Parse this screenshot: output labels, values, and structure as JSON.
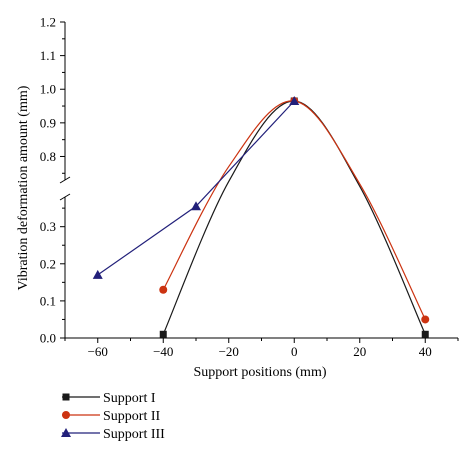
{
  "chart_data": {
    "type": "line",
    "title": "",
    "xlabel": "Support positions (mm)",
    "ylabel": "Vibration deformation amount (mm)",
    "xlim": [
      -70,
      50
    ],
    "x_ticks": [
      "−60",
      "−40",
      "−20",
      "0",
      "20",
      "40"
    ],
    "x_tick_values": [
      -60,
      -40,
      -20,
      0,
      20,
      40
    ],
    "y_broken_axis": true,
    "y_lower_range": [
      0.0,
      0.38
    ],
    "y_upper_range": [
      0.73,
      1.2
    ],
    "y_ticks_lower": [
      "0.0",
      "0.1",
      "0.2",
      "0.3"
    ],
    "y_tick_values_lower": [
      0.0,
      0.1,
      0.2,
      0.3
    ],
    "y_ticks_upper": [
      "0.8",
      "0.9",
      "1.0",
      "1.1",
      "1.2"
    ],
    "y_tick_values_upper": [
      0.8,
      0.9,
      1.0,
      1.1,
      1.2
    ],
    "grid": false,
    "smooth": true,
    "legend_position": "bottom-left",
    "series": [
      {
        "name": "Support I",
        "marker": "square",
        "color": "#1a1a1a",
        "x": [
          -40,
          0,
          40
        ],
        "y": [
          0.01,
          0.965,
          0.01
        ]
      },
      {
        "name": "Support II",
        "marker": "circle",
        "color": "#cc3311",
        "x": [
          -40,
          0,
          40
        ],
        "y": [
          0.13,
          0.965,
          0.05
        ]
      },
      {
        "name": "Support III",
        "marker": "triangle",
        "color": "#22207a",
        "x": [
          -60,
          -30,
          0
        ],
        "y": [
          0.17,
          0.355,
          0.965
        ]
      }
    ]
  }
}
